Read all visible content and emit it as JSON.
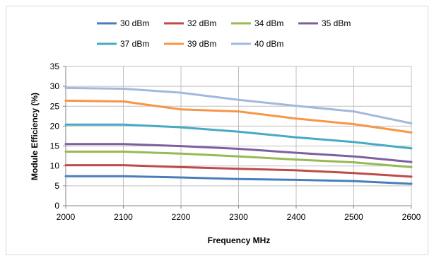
{
  "chart_data": {
    "type": "line",
    "title": "",
    "xlabel": "Frequency MHz",
    "ylabel": "Module Efficiency  (%)",
    "x": [
      2000,
      2100,
      2200,
      2300,
      2400,
      2500,
      2600
    ],
    "xlim": [
      2000,
      2600
    ],
    "ylim": [
      0,
      35
    ],
    "xticks": [
      "2000",
      "2100",
      "2200",
      "2300",
      "2400",
      "2500",
      "2600"
    ],
    "yticks": [
      "0",
      "5",
      "10",
      "15",
      "20",
      "25",
      "30",
      "35"
    ],
    "grid": true,
    "legend_position": "top",
    "series": [
      {
        "name": "30 dBm",
        "color": "#4a7ebb",
        "values": [
          7.4,
          7.4,
          7.1,
          6.7,
          6.5,
          6.2,
          5.5
        ]
      },
      {
        "name": "32 dBm",
        "color": "#be4b48",
        "values": [
          10.2,
          10.2,
          9.7,
          9.3,
          8.9,
          8.2,
          7.3
        ]
      },
      {
        "name": "34 dBm",
        "color": "#98b954",
        "values": [
          13.6,
          13.6,
          13.1,
          12.4,
          11.6,
          10.9,
          9.7
        ]
      },
      {
        "name": "35 dBm",
        "color": "#7d60a0",
        "values": [
          15.5,
          15.5,
          15.0,
          14.3,
          13.3,
          12.4,
          11.0
        ]
      },
      {
        "name": "37 dBm",
        "color": "#46aac5",
        "values": [
          20.4,
          20.4,
          19.7,
          18.6,
          17.2,
          16.0,
          14.4
        ]
      },
      {
        "name": "39 dBm",
        "color": "#f79646",
        "values": [
          26.4,
          26.2,
          24.2,
          23.7,
          21.9,
          20.5,
          18.4
        ]
      },
      {
        "name": "40 dBm",
        "color": "#a3b8dc",
        "values": [
          29.6,
          29.4,
          28.4,
          26.6,
          25.1,
          23.7,
          20.7
        ]
      }
    ]
  }
}
